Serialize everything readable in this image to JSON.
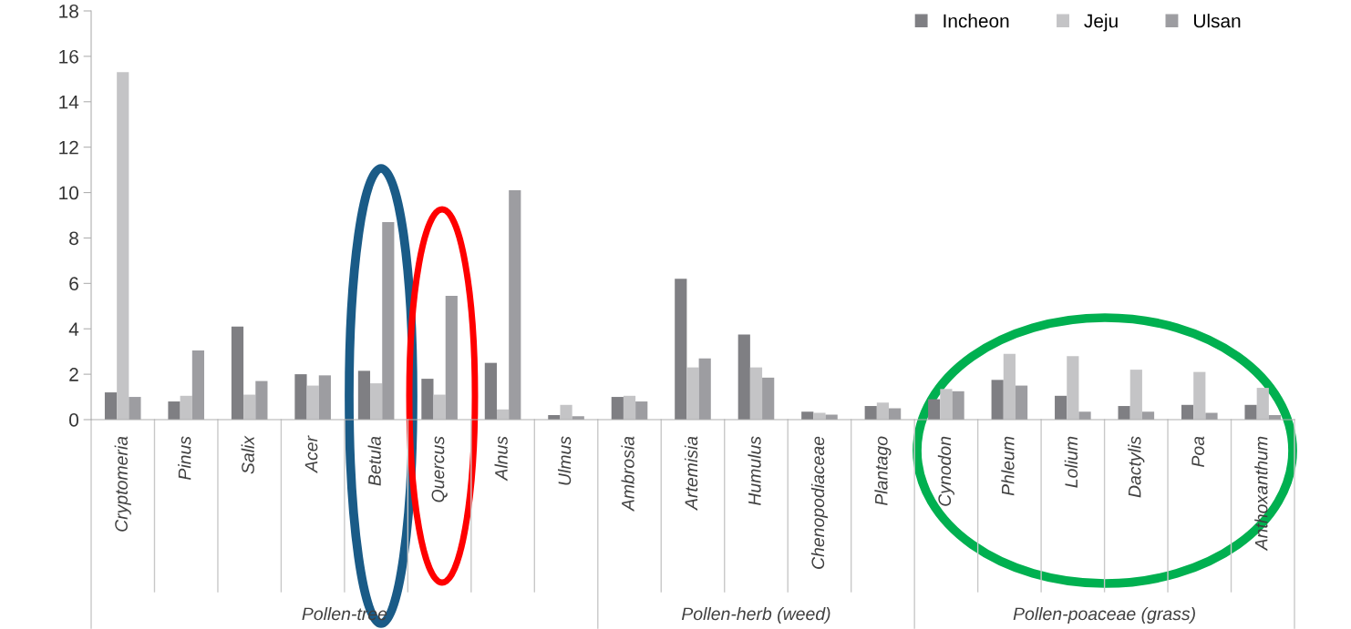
{
  "chart_data": {
    "type": "bar",
    "categories": [
      "Cryptomeria",
      "Pinus",
      "Salix",
      "Acer",
      "Betula",
      "Quercus",
      "Alnus",
      "Ulmus",
      "Ambrosia",
      "Artemisia",
      "Humulus",
      "Chenopodiaceae",
      "Plantago",
      "Cynodon",
      "Phleum",
      "Lolium",
      "Dactylis",
      "Poa",
      "Anthoxanthum"
    ],
    "series": [
      {
        "name": "Incheon",
        "color": "#7f7f83",
        "values": [
          1.2,
          0.8,
          4.1,
          2.0,
          2.15,
          1.8,
          2.5,
          0.2,
          1.0,
          6.2,
          3.75,
          0.35,
          0.6,
          0.9,
          1.75,
          1.05,
          0.6,
          0.65,
          0.65
        ]
      },
      {
        "name": "Jeju",
        "color": "#c4c4c6",
        "values": [
          15.3,
          1.05,
          1.1,
          1.5,
          1.6,
          1.1,
          0.45,
          0.65,
          1.05,
          2.3,
          2.3,
          0.3,
          0.75,
          1.35,
          2.9,
          2.8,
          2.2,
          2.1,
          1.4
        ]
      },
      {
        "name": "Ulsan",
        "color": "#9d9da1",
        "values": [
          1.0,
          3.05,
          1.7,
          1.95,
          8.7,
          5.45,
          10.1,
          0.15,
          0.8,
          2.7,
          1.85,
          0.22,
          0.5,
          1.25,
          1.5,
          0.35,
          0.35,
          0.3,
          0.2
        ]
      }
    ],
    "ylim": [
      0,
      18
    ],
    "yticks": [
      0,
      2,
      4,
      6,
      8,
      10,
      12,
      14,
      16,
      18
    ],
    "annotations": [
      "Pollen-tree",
      "Pollen-herb (weed)",
      "Pollen-poaceae (grass)"
    ],
    "legend": "top right",
    "grid": false
  }
}
